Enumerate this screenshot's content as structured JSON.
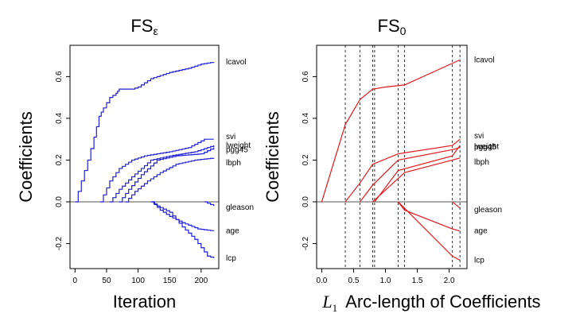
{
  "chart_data": [
    {
      "type": "line",
      "title": "FS",
      "title_subscript": "ε",
      "xlabel": "Iteration",
      "ylabel": "Coefficients",
      "xlim": [
        -8,
        228
      ],
      "ylim": [
        -0.32,
        0.75
      ],
      "xticks": [
        0,
        50,
        100,
        150,
        200
      ],
      "yticks": [
        -0.2,
        0.0,
        0.2,
        0.4,
        0.6
      ],
      "ytick_labels": [
        "-0.2",
        "0.0",
        "0.2",
        "0.4",
        "0.6"
      ],
      "line_color": "#1f1fd6",
      "step": true,
      "zero_line": true,
      "series": [
        {
          "name": "lcavol",
          "points": [
            [
              0,
              0
            ],
            [
              10,
              0.1
            ],
            [
              20,
              0.2
            ],
            [
              30,
              0.31
            ],
            [
              38,
              0.41
            ],
            [
              45,
              0.45
            ],
            [
              55,
              0.5
            ],
            [
              65,
              0.52
            ],
            [
              70,
              0.54
            ],
            [
              90,
              0.54
            ],
            [
              100,
              0.55
            ],
            [
              120,
              0.59
            ],
            [
              150,
              0.62
            ],
            [
              180,
              0.64
            ],
            [
              200,
              0.66
            ],
            [
              220,
              0.67
            ]
          ]
        },
        {
          "name": "svi",
          "points": [
            [
              40,
              0
            ],
            [
              55,
              0.1
            ],
            [
              70,
              0.16
            ],
            [
              90,
              0.2
            ],
            [
              110,
              0.22
            ],
            [
              150,
              0.24
            ],
            [
              180,
              0.26
            ],
            [
              205,
              0.3
            ],
            [
              220,
              0.3
            ]
          ]
        },
        {
          "name": "lweight",
          "points": [
            [
              55,
              0
            ],
            [
              70,
              0.06
            ],
            [
              90,
              0.12
            ],
            [
              120,
              0.2
            ],
            [
              150,
              0.22
            ],
            [
              190,
              0.24
            ],
            [
              220,
              0.27
            ]
          ]
        },
        {
          "name": "pgg45",
          "points": [
            [
              70,
              0
            ],
            [
              85,
              0.06
            ],
            [
              105,
              0.13
            ],
            [
              130,
              0.2
            ],
            [
              160,
              0.22
            ],
            [
              200,
              0.23
            ],
            [
              220,
              0.26
            ]
          ]
        },
        {
          "name": "lbph",
          "points": [
            [
              80,
              0
            ],
            [
              95,
              0.05
            ],
            [
              115,
              0.1
            ],
            [
              135,
              0.14
            ],
            [
              160,
              0.18
            ],
            [
              190,
              0.2
            ],
            [
              220,
              0.21
            ]
          ]
        },
        {
          "name": "gleason",
          "points": [
            [
              205,
              0
            ],
            [
              220,
              -0.02
            ]
          ]
        },
        {
          "name": "age",
          "points": [
            [
              122,
              0
            ],
            [
              135,
              -0.04
            ],
            [
              150,
              -0.07
            ],
            [
              170,
              -0.1
            ],
            [
              195,
              -0.13
            ],
            [
              220,
              -0.14
            ]
          ]
        },
        {
          "name": "lcp",
          "points": [
            [
              120,
              0
            ],
            [
              130,
              -0.02
            ],
            [
              150,
              -0.05
            ],
            [
              170,
              -0.12
            ],
            [
              190,
              -0.18
            ],
            [
              210,
              -0.26
            ],
            [
              220,
              -0.27
            ]
          ]
        }
      ]
    },
    {
      "type": "line",
      "title": "FS",
      "title_subscript": "0",
      "xlabel": "Arc-length of Coefficients",
      "xlabel_math": "L",
      "xlabel_math_subscript": "1",
      "ylabel": "Coefficients",
      "xlim": [
        -0.08,
        2.28
      ],
      "ylim": [
        -0.32,
        0.75
      ],
      "xticks": [
        0.0,
        0.5,
        1.0,
        1.5,
        2.0
      ],
      "xtick_labels": [
        "0.0",
        "0.5",
        "1.0",
        "1.5",
        "2.0"
      ],
      "yticks": [
        -0.2,
        0.0,
        0.2,
        0.4,
        0.6
      ],
      "ytick_labels": [
        "-0.2",
        "0.0",
        "0.2",
        "0.4",
        "0.6"
      ],
      "line_color": "#e31a1c",
      "zero_line": true,
      "vlines": [
        0.37,
        0.6,
        0.8,
        0.83,
        1.2,
        1.3,
        2.05,
        2.17
      ],
      "series": [
        {
          "name": "lcavol",
          "points": [
            [
              0,
              0
            ],
            [
              0.37,
              0.37
            ],
            [
              0.6,
              0.49
            ],
            [
              0.8,
              0.54
            ],
            [
              1.0,
              0.55
            ],
            [
              1.3,
              0.56
            ],
            [
              2.17,
              0.68
            ]
          ]
        },
        {
          "name": "svi",
          "points": [
            [
              0.37,
              0
            ],
            [
              0.6,
              0.09
            ],
            [
              0.8,
              0.18
            ],
            [
              1.2,
              0.23
            ],
            [
              2.05,
              0.27
            ],
            [
              2.17,
              0.3
            ]
          ]
        },
        {
          "name": "lweight",
          "points": [
            [
              0.6,
              0
            ],
            [
              0.8,
              0.08
            ],
            [
              1.2,
              0.2
            ],
            [
              2.05,
              0.25
            ],
            [
              2.17,
              0.26
            ]
          ]
        },
        {
          "name": "pgg45",
          "points": [
            [
              0.83,
              0
            ],
            [
              1.2,
              0.15
            ],
            [
              2.05,
              0.22
            ],
            [
              2.17,
              0.27
            ]
          ]
        },
        {
          "name": "lbph",
          "points": [
            [
              0.8,
              0
            ],
            [
              1.3,
              0.14
            ],
            [
              2.05,
              0.2
            ],
            [
              2.17,
              0.21
            ]
          ]
        },
        {
          "name": "gleason",
          "points": [
            [
              2.05,
              0
            ],
            [
              2.17,
              -0.03
            ]
          ]
        },
        {
          "name": "age",
          "points": [
            [
              1.2,
              0
            ],
            [
              1.3,
              -0.04
            ],
            [
              2.05,
              -0.13
            ],
            [
              2.17,
              -0.14
            ]
          ]
        },
        {
          "name": "lcp",
          "points": [
            [
              1.2,
              0
            ],
            [
              2.05,
              -0.26
            ],
            [
              2.17,
              -0.28
            ]
          ]
        }
      ]
    }
  ]
}
